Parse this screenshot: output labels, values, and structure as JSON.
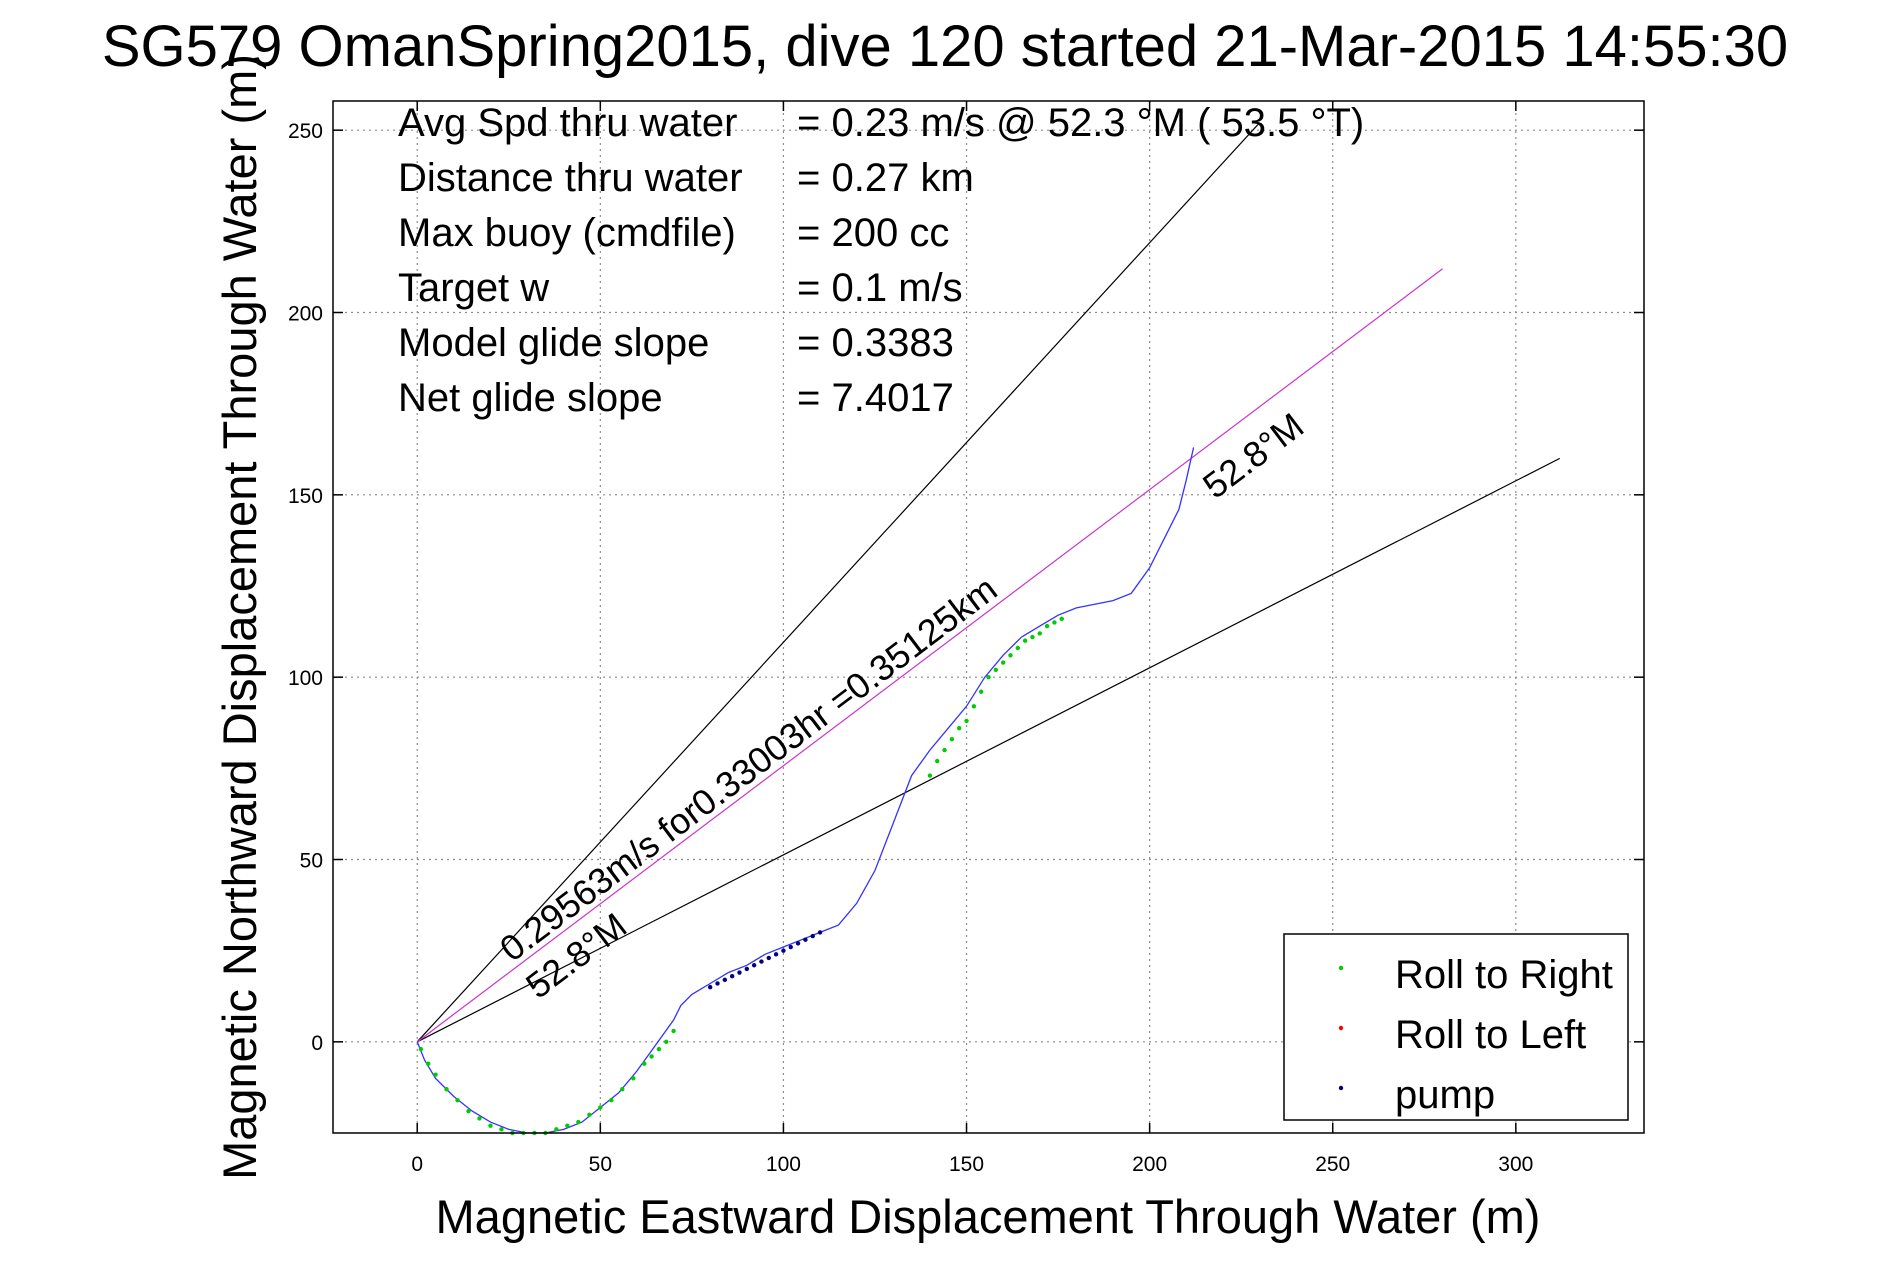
{
  "chart_data": {
    "type": "scatter",
    "title": "SG579 OmanSpring2015, dive 120 started 21-Mar-2015 14:55:30",
    "xlabel": "Magnetic Eastward Displacement Through Water (m)",
    "ylabel": "Magnetic Northward Displacement Through Water (m)",
    "xlim": [
      -23,
      335
    ],
    "ylim": [
      -25,
      258
    ],
    "xticks": [
      0,
      50,
      100,
      150,
      200,
      250,
      300
    ],
    "yticks": [
      0,
      50,
      100,
      150,
      200,
      250
    ],
    "grid": true,
    "legend_position": "bottom-right",
    "info_lines": [
      {
        "label": "Avg Spd thru water",
        "value": "=  0.23 m/s @  52.3 °M ( 53.5 °T)"
      },
      {
        "label": "Distance thru water",
        "value": "=  0.27 km"
      },
      {
        "label": "Max buoy (cmdfile)",
        "value": "= 200 cc"
      },
      {
        "label": "Target w",
        "value": "= 0.1 m/s"
      },
      {
        "label": "Model glide slope",
        "value": "= 0.3383"
      },
      {
        "label": "Net glide slope",
        "value": "= 7.4017"
      }
    ],
    "annotations": [
      {
        "text": "0.29563m/s for0.33003hr =0.35125km"
      },
      {
        "text": "52.8°M"
      },
      {
        "text": "52.8°M"
      }
    ],
    "lines": [
      {
        "color": "#000000",
        "x": [
          0,
          230
        ],
        "y": [
          0,
          252
        ]
      },
      {
        "color": "#000000",
        "x": [
          0,
          312
        ],
        "y": [
          0,
          160
        ]
      },
      {
        "color": "#cc33cc",
        "x": [
          0,
          280
        ],
        "y": [
          0,
          212
        ]
      }
    ],
    "track": {
      "color": "#3333ff",
      "x": [
        0,
        2,
        5,
        10,
        15,
        20,
        25,
        30,
        35,
        40,
        45,
        50,
        55,
        60,
        65,
        70,
        72,
        75,
        80,
        85,
        90,
        95,
        100,
        105,
        110,
        115,
        120,
        125,
        130,
        135,
        140,
        145,
        150,
        155,
        160,
        165,
        170,
        175,
        180,
        185,
        190,
        195,
        200,
        205,
        208,
        210,
        212
      ],
      "y": [
        0,
        -5,
        -10,
        -15,
        -19,
        -22,
        -24,
        -25,
        -25,
        -24,
        -22,
        -18,
        -14,
        -8,
        -1,
        6,
        10,
        13,
        16,
        19,
        21,
        24,
        26,
        28,
        30,
        32,
        38,
        47,
        60,
        73,
        80,
        86,
        92,
        100,
        106,
        111,
        114,
        117,
        119,
        120,
        121,
        123,
        130,
        140,
        146,
        154,
        163
      ]
    },
    "series": [
      {
        "name": "Roll to Right",
        "color": "#00cc00",
        "x": [
          1,
          3,
          5,
          8,
          11,
          14,
          17,
          20,
          23,
          26,
          29,
          32,
          35,
          38,
          41,
          44,
          47,
          50,
          53,
          56,
          59,
          62,
          64,
          66,
          68,
          70,
          140,
          142,
          144,
          146,
          148,
          150,
          152,
          154,
          156,
          158,
          160,
          162,
          164,
          166,
          168,
          170,
          172,
          174,
          176
        ],
        "y": [
          -2,
          -6,
          -9,
          -13,
          -16,
          -19,
          -21,
          -23,
          -24,
          -25,
          -25,
          -25,
          -25,
          -24,
          -23,
          -22,
          -20,
          -18,
          -16,
          -13,
          -10,
          -6,
          -4,
          -2,
          0,
          3,
          73,
          77,
          80,
          83,
          86,
          88,
          92,
          96,
          100,
          102,
          104,
          106,
          108,
          110,
          111,
          112,
          114,
          115,
          116
        ]
      },
      {
        "name": "Roll to Left",
        "color": "#ff0000",
        "x": [],
        "y": []
      },
      {
        "name": "pump",
        "color": "#000080",
        "x": [
          80,
          82,
          84,
          86,
          88,
          90,
          92,
          94,
          96,
          98,
          100,
          102,
          104,
          106,
          108,
          110
        ],
        "y": [
          15,
          16,
          17,
          18,
          19,
          20,
          21,
          22,
          23,
          24,
          25,
          26,
          27,
          28,
          29,
          30
        ]
      }
    ]
  }
}
